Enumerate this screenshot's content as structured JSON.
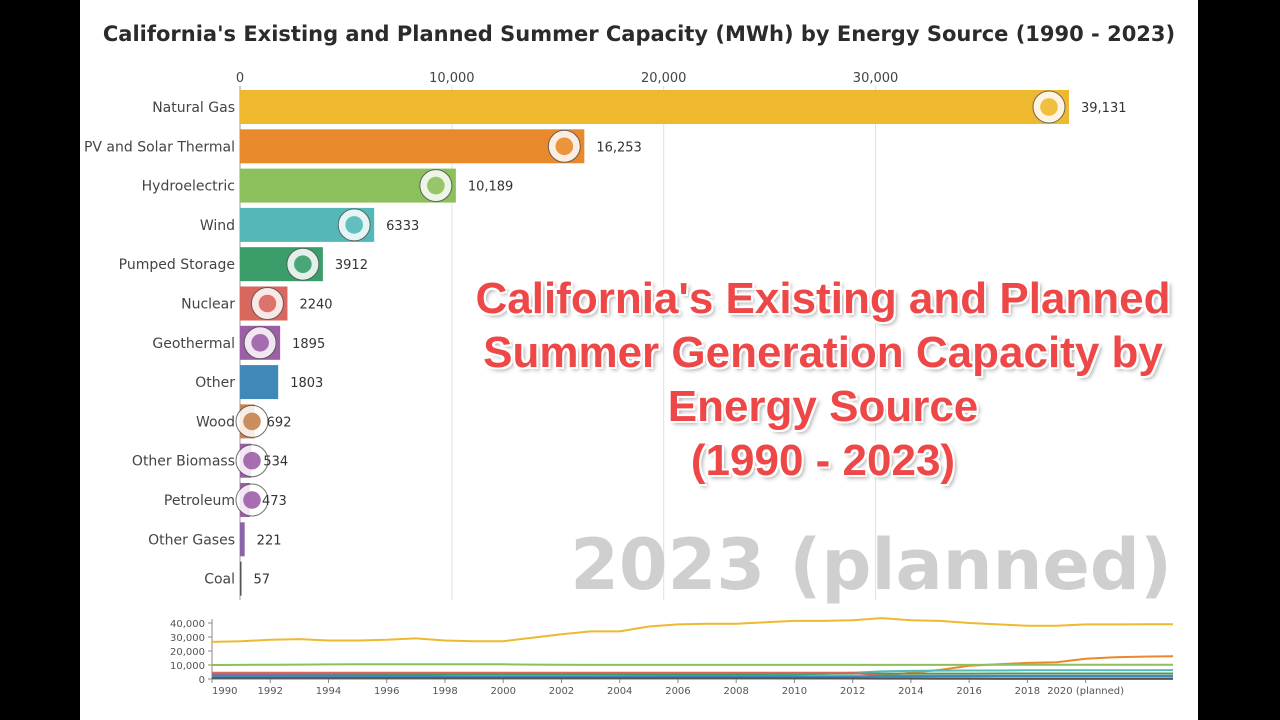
{
  "chart_data": [
    {
      "type": "bar",
      "title": "California's Existing and Planned Summer Capacity (MWh) by Energy Source (1990 - 2023)",
      "current_year": "2023 (planned)",
      "xlim": [
        0,
        39131
      ],
      "x_ticks": [
        0,
        10000,
        20000,
        30000
      ],
      "x_tick_labels": [
        "0",
        "10,000",
        "20,000",
        "30,000"
      ],
      "grid": true,
      "categories": [
        "Natural Gas",
        "PV and Solar Thermal",
        "Hydroelectric",
        "Wind",
        "Pumped Storage",
        "Nuclear",
        "Geothermal",
        "Other",
        "Wood",
        "Other Biomass",
        "Petroleum",
        "Other Gases",
        "Coal"
      ],
      "values": [
        39131,
        16253,
        10189,
        6333,
        3912,
        2240,
        1895,
        1803,
        692,
        534,
        473,
        221,
        57
      ],
      "value_labels": [
        "39,131",
        "16,253",
        "10,189",
        "6333",
        "3912",
        "2240",
        "1895",
        "1803",
        "692",
        "534",
        "473",
        "221",
        "57"
      ],
      "colors": [
        "#efb92f",
        "#e8892c",
        "#8cc05c",
        "#54b8b9",
        "#3a9d6a",
        "#d9675d",
        "#9d5ea8",
        "#3f88b7",
        "#c4834f",
        "#9d5ea8",
        "#9d5ea8",
        "#8a64a8",
        "#555555"
      ],
      "icons": [
        "gas-flame-icon",
        "solar-panel-icon",
        "dam-icon",
        "wind-turbine-icon",
        "pumped-storage-icon",
        "nuclear-plant-icon",
        "geothermal-plant-icon",
        "",
        "wood-fire-icon",
        "biomass-icon",
        "petroleum-icon",
        "",
        ""
      ]
    },
    {
      "type": "line",
      "x": [
        1990,
        1991,
        1992,
        1993,
        1994,
        1995,
        1996,
        1997,
        1998,
        1999,
        2000,
        2001,
        2002,
        2003,
        2004,
        2005,
        2006,
        2007,
        2008,
        2009,
        2010,
        2011,
        2012,
        2013,
        2014,
        2015,
        2016,
        2017,
        2018,
        2019,
        2020,
        2021,
        2022,
        2023
      ],
      "x_tick_labels": [
        "1990",
        "1992",
        "1994",
        "1996",
        "1998",
        "2000",
        "2002",
        "2004",
        "2006",
        "2008",
        "2010",
        "2012",
        "2014",
        "2016",
        "2018",
        "2020 (planned)"
      ],
      "ylim": [
        0,
        40000
      ],
      "y_tick_labels": [
        "0",
        "10,000",
        "20,000",
        "30,000",
        "40,000"
      ],
      "series": [
        {
          "color": "#efb92f",
          "values": [
            26500,
            27000,
            28000,
            28500,
            27500,
            27500,
            28000,
            29000,
            27500,
            27000,
            27000,
            29500,
            32000,
            34000,
            34000,
            37500,
            39000,
            39500,
            39500,
            40500,
            41500,
            41500,
            42000,
            43500,
            42000,
            41500,
            40000,
            39000,
            38000,
            38000,
            39000,
            39000,
            39100,
            39131
          ]
        },
        {
          "color": "#e8892c",
          "values": [
            400,
            400,
            400,
            400,
            400,
            400,
            400,
            400,
            400,
            400,
            400,
            400,
            400,
            400,
            400,
            400,
            400,
            400,
            450,
            500,
            600,
            700,
            1200,
            2500,
            4500,
            6500,
            9500,
            10500,
            11500,
            12000,
            14500,
            15500,
            16000,
            16253
          ]
        },
        {
          "color": "#8cc05c",
          "values": [
            10000,
            10100,
            10200,
            10300,
            10400,
            10500,
            10500,
            10500,
            10500,
            10500,
            10500,
            10300,
            10200,
            10100,
            10100,
            10100,
            10100,
            10100,
            10100,
            10100,
            10100,
            10100,
            10100,
            10100,
            10100,
            10100,
            10100,
            10150,
            10150,
            10150,
            10170,
            10180,
            10185,
            10189
          ]
        },
        {
          "color": "#54b8b9",
          "values": [
            1600,
            1600,
            1600,
            1600,
            1600,
            1600,
            1600,
            1600,
            1600,
            1600,
            1600,
            1650,
            1700,
            1800,
            2000,
            2100,
            2200,
            2400,
            2600,
            2900,
            3200,
            3800,
            4400,
            5400,
            5800,
            6000,
            6100,
            6100,
            6200,
            6200,
            6250,
            6300,
            6320,
            6333
          ]
        },
        {
          "color": "#3a9d6a",
          "values": [
            3500,
            3500,
            3500,
            3500,
            3500,
            3500,
            3500,
            3500,
            3500,
            3500,
            3500,
            3500,
            3500,
            3500,
            3500,
            3500,
            3500,
            3500,
            3600,
            3700,
            3800,
            3800,
            3850,
            3850,
            3850,
            3880,
            3880,
            3900,
            3900,
            3900,
            3900,
            3910,
            3910,
            3912
          ]
        },
        {
          "color": "#d9675d",
          "values": [
            4400,
            4400,
            4400,
            4400,
            4400,
            4400,
            4400,
            4400,
            4400,
            4400,
            4400,
            4400,
            4400,
            4400,
            4400,
            4400,
            4400,
            4400,
            4400,
            4400,
            4400,
            4400,
            4400,
            2240,
            2240,
            2240,
            2240,
            2240,
            2240,
            2240,
            2240,
            2240,
            2240,
            2240
          ]
        },
        {
          "color": "#9d5ea8",
          "values": [
            2700,
            2700,
            2700,
            2600,
            2500,
            2400,
            2300,
            2200,
            2100,
            2000,
            2000,
            2000,
            2000,
            2000,
            2000,
            2000,
            2000,
            2000,
            2000,
            2000,
            2000,
            2000,
            2000,
            2000,
            2000,
            2000,
            1950,
            1950,
            1900,
            1900,
            1900,
            1900,
            1900,
            1895
          ]
        },
        {
          "color": "#3f88b7",
          "values": [
            1500,
            1500,
            1500,
            1500,
            1500,
            1500,
            1500,
            1500,
            1500,
            1500,
            1500,
            1500,
            1500,
            1500,
            1500,
            1500,
            1500,
            1500,
            1550,
            1600,
            1600,
            1650,
            1650,
            1700,
            1700,
            1700,
            1750,
            1750,
            1780,
            1780,
            1790,
            1800,
            1800,
            1803
          ]
        },
        {
          "color": "#555555",
          "values": [
            500,
            500,
            500,
            500,
            500,
            500,
            500,
            500,
            500,
            500,
            500,
            500,
            500,
            500,
            500,
            500,
            500,
            500,
            500,
            500,
            450,
            400,
            350,
            300,
            250,
            200,
            150,
            100,
            80,
            60,
            57,
            57,
            57,
            57
          ]
        }
      ]
    }
  ]
}
